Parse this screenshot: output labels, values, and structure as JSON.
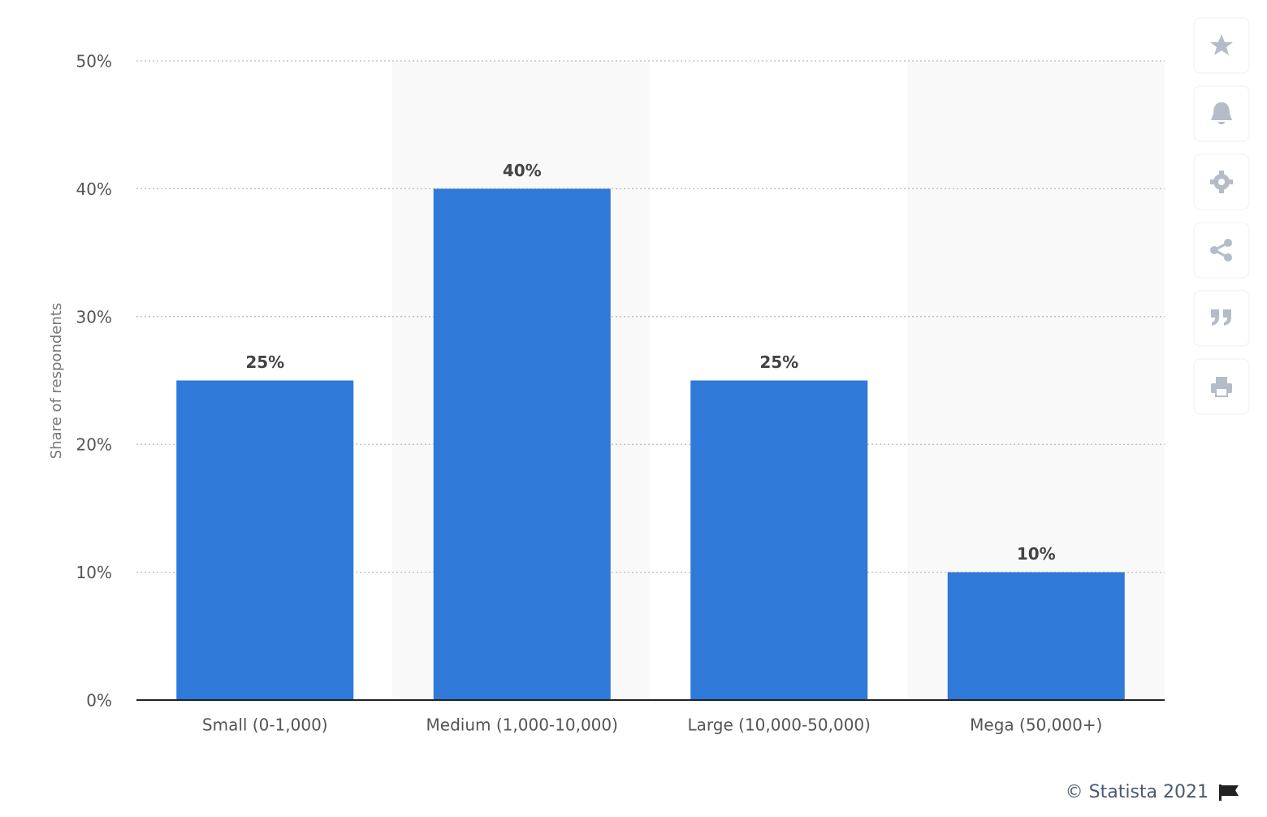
{
  "chart_data": {
    "type": "bar",
    "y_label": "Share of respondents",
    "categories": [
      "Small (0-1,000)",
      "Medium (1,000-10,000)",
      "Large (10,000-50,000)",
      "Mega (50,000+)"
    ],
    "values": [
      25,
      40,
      25,
      10
    ],
    "value_labels": [
      "25%",
      "40%",
      "25%",
      "10%"
    ],
    "color": "#2f79d9",
    "ylim": [
      0,
      50
    ],
    "yticks": [
      {
        "value": 0,
        "label": "0%"
      },
      {
        "value": 10,
        "label": "10%"
      },
      {
        "value": 20,
        "label": "20%"
      },
      {
        "value": 30,
        "label": "30%"
      },
      {
        "value": 40,
        "label": "40%"
      },
      {
        "value": 50,
        "label": "50%"
      }
    ],
    "grid": true,
    "credit": "© Statista 2021"
  }
}
